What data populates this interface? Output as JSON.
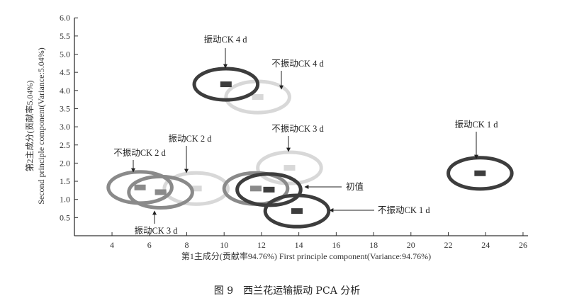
{
  "chart_data": {
    "type": "scatter",
    "title": "",
    "caption": "图 9　西兰花运输振动 PCA 分析",
    "xlabel": "第1主成分(贡献率94.76%) First principle component(Variance:94.76%)",
    "ylabel_lines": [
      "第2主成分(贡献率5.04%)",
      "Second principle component(Variance:5.04%)"
    ],
    "xlim": [
      0,
      26.5
    ],
    "ylim": [
      0,
      6.0
    ],
    "xticks": [
      4,
      6,
      8,
      10,
      12,
      14,
      16,
      18,
      20,
      22,
      24,
      26
    ],
    "yticks": [
      "0.5",
      "1.0",
      "1.5",
      "2.0",
      "2.5",
      "3.0",
      "3.5",
      "4.0",
      "4.5",
      "5.0",
      "5.5",
      "6.0"
    ],
    "grid": false,
    "ellipse_semi_axes": {
      "x": 1.7,
      "y": 0.43
    },
    "colors": {
      "dark": "#3d3d3d",
      "medium": "#8a8a8a",
      "light": "#d8d8d8"
    },
    "groups": [
      {
        "label": "振动CK 4 d",
        "x": 10.1,
        "y": 4.17,
        "shade": "dark"
      },
      {
        "label": "不振动CK 4 d",
        "x": 11.8,
        "y": 3.82,
        "shade": "light"
      },
      {
        "label": "不振动CK 3 d",
        "x": 13.5,
        "y": 1.87,
        "shade": "light"
      },
      {
        "label": "振动CK 1 d",
        "x": 23.7,
        "y": 1.72,
        "shade": "dark"
      },
      {
        "label": "初值",
        "x": 12.4,
        "y": 1.27,
        "shade": "dark"
      },
      {
        "label": "不振动CK 1 d",
        "x": 13.9,
        "y": 0.68,
        "shade": "dark"
      },
      {
        "label": "不振动CK 2 d",
        "x": 5.5,
        "y": 1.33,
        "shade": "medium"
      },
      {
        "label": "振动CK 2 d",
        "x": 8.5,
        "y": 1.3,
        "shade": "light"
      },
      {
        "label": "振动CK 3 d",
        "x": 6.6,
        "y": 1.2,
        "shade": "medium"
      },
      {
        "label": "",
        "x": 11.7,
        "y": 1.3,
        "shade": "medium"
      }
    ]
  }
}
